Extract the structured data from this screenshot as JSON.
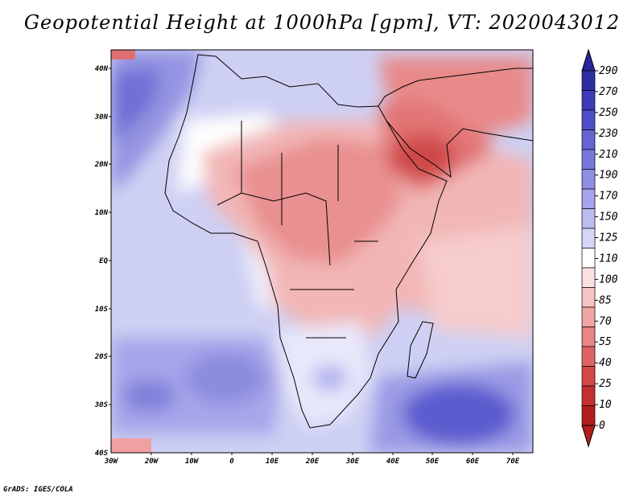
{
  "title": "Geopotential Height at 1000hPa [gpm], VT: 2020043012",
  "credit": "GrADS: IGES/COLA",
  "map": {
    "lat_labels": [
      "40N",
      "30N",
      "20N",
      "10N",
      "EQ",
      "10S",
      "20S",
      "30S",
      "40S"
    ],
    "lon_labels": [
      "30W",
      "20W",
      "10W",
      "0",
      "10E",
      "20E",
      "30E",
      "40E",
      "50E",
      "60E",
      "70E"
    ],
    "lon_range_deg": [
      -30,
      75
    ],
    "lat_range_deg": [
      -40,
      45
    ]
  },
  "colorbar": {
    "labels": [
      "290",
      "270",
      "250",
      "230",
      "210",
      "190",
      "170",
      "150",
      "125",
      "110",
      "100",
      "85",
      "70",
      "55",
      "40",
      "25",
      "10",
      "0"
    ],
    "colors": [
      "#2c2ea0",
      "#3c3cb8",
      "#4f4fc8",
      "#6464d2",
      "#7878da",
      "#8e8ee3",
      "#a4a4ea",
      "#bcbcf1",
      "#d6d6f7",
      "#ffffff",
      "#fbe0e0",
      "#f6c2c2",
      "#f0a4a4",
      "#e88585",
      "#de6464",
      "#d24848",
      "#c43030",
      "#b41c1c"
    ]
  }
}
